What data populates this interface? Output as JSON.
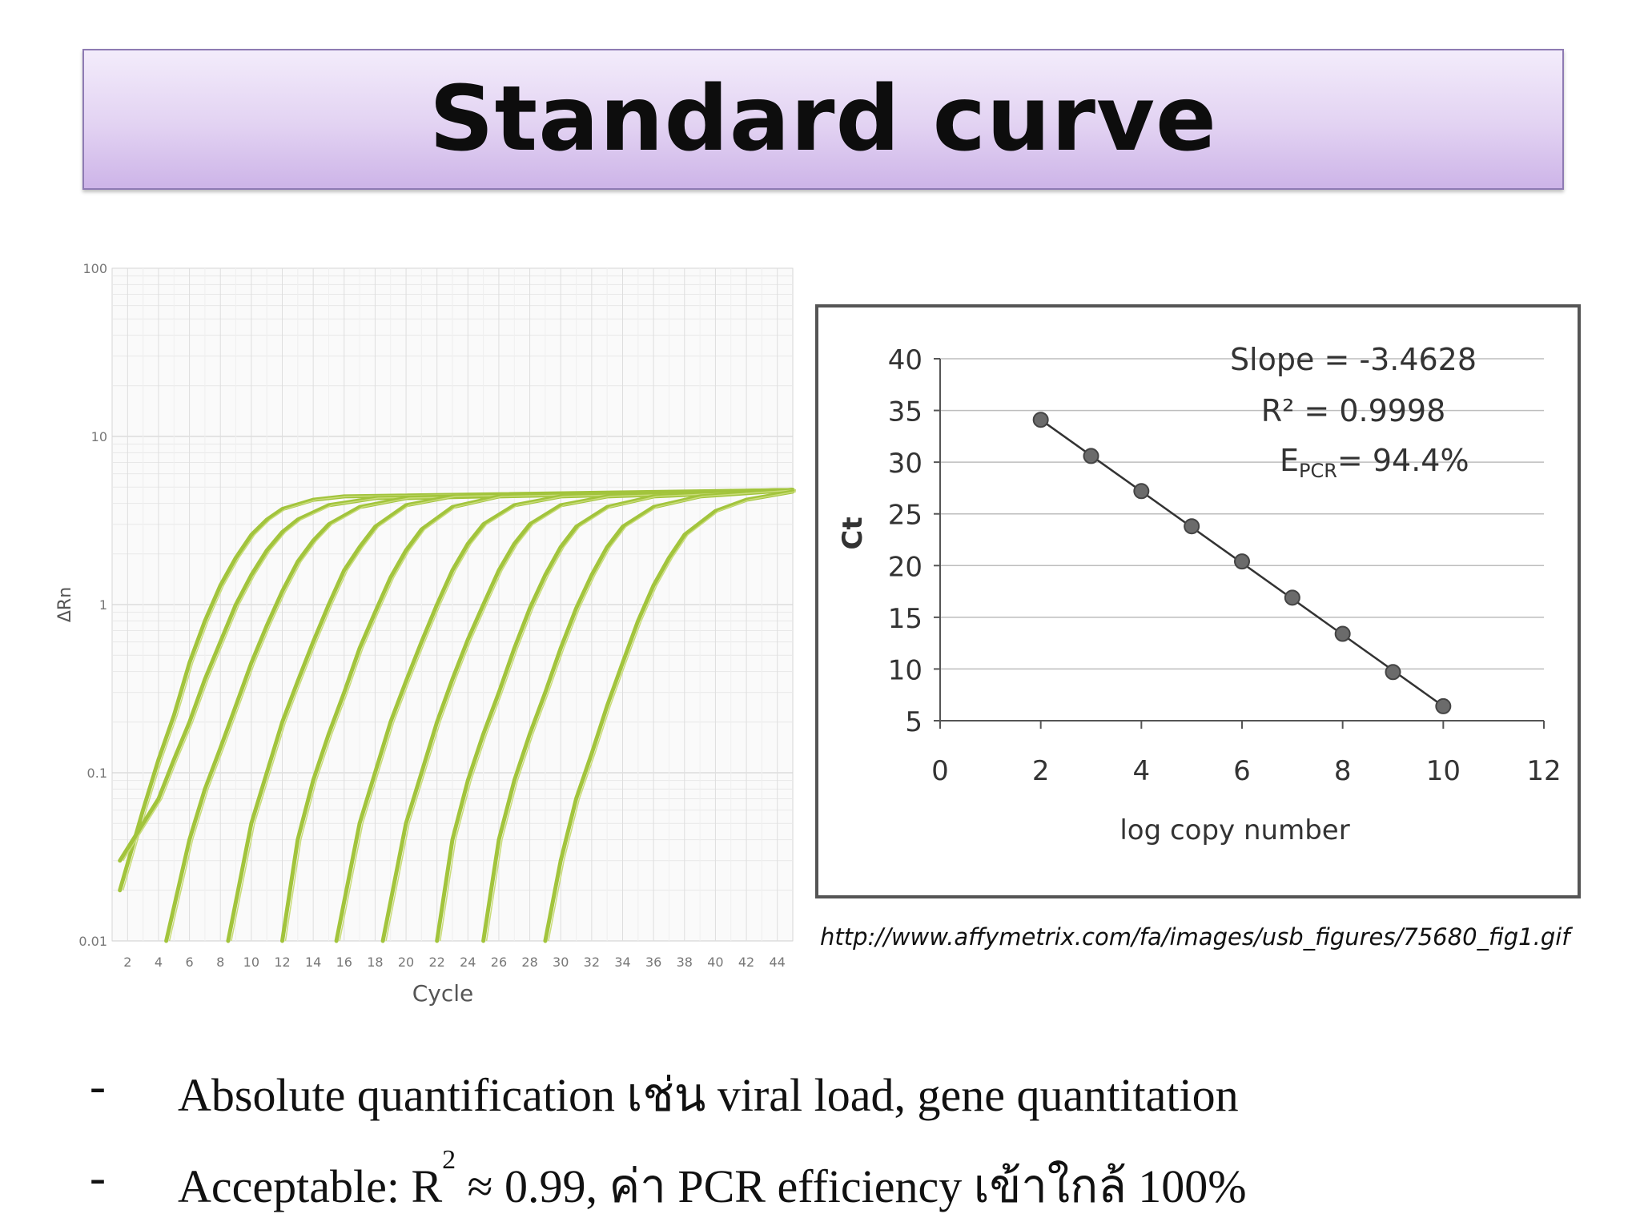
{
  "slide": {
    "title": "Standard curve",
    "source": "http://www.affymetrix.com/fa/images/usb_figures/75680_fig1.gif",
    "bullets": [
      {
        "marker": "-",
        "text": "Absolute quantification เช่น viral load, gene quantitation"
      },
      {
        "marker": "-",
        "pre": "Acceptable: R",
        "sup": "2",
        "post": " ≈ 0.99, ค่า PCR efficiency เข้าใกล้ 100%"
      }
    ]
  },
  "chart_data": [
    {
      "type": "line",
      "xlabel": "Cycle",
      "ylabel": "ΔRn",
      "xlim": [
        1,
        45
      ],
      "ylim": [
        0.01,
        100
      ],
      "yscale": "log",
      "x_ticks": [
        2,
        4,
        6,
        8,
        10,
        12,
        14,
        16,
        18,
        20,
        22,
        24,
        26,
        28,
        30,
        32,
        34,
        36,
        38,
        40,
        42,
        44
      ],
      "y_ticks": [
        "0.01",
        "0.1",
        "1",
        "10",
        "100"
      ],
      "grid": true,
      "color": "#a2c43c",
      "series": [
        {
          "values_at": {
            "x": [
              1.5,
              3,
              4,
              5,
              6,
              7,
              8,
              9,
              10,
              11,
              12,
              14,
              16,
              45
            ],
            "y": [
              0.02,
              0.06,
              0.12,
              0.22,
              0.45,
              0.8,
              1.3,
              1.9,
              2.6,
              3.2,
              3.7,
              4.2,
              4.4,
              4.8
            ]
          }
        },
        {
          "values_at": {
            "x": [
              1.5,
              4,
              5,
              6,
              7,
              8,
              9,
              10,
              11,
              12,
              13,
              15,
              18,
              45
            ],
            "y": [
              0.03,
              0.07,
              0.12,
              0.2,
              0.36,
              0.6,
              1.0,
              1.5,
              2.1,
              2.7,
              3.2,
              3.9,
              4.3,
              4.8
            ]
          }
        },
        {
          "values_at": {
            "x": [
              4.5,
              6,
              7,
              8,
              9,
              10,
              11,
              12,
              13,
              14,
              15,
              17,
              20,
              45
            ],
            "y": [
              0.01,
              0.04,
              0.08,
              0.14,
              0.25,
              0.45,
              0.75,
              1.2,
              1.8,
              2.4,
              3.0,
              3.8,
              4.3,
              4.8
            ]
          }
        },
        {
          "values_at": {
            "x": [
              8.5,
              10,
              11,
              12,
              13,
              14,
              15,
              16,
              17,
              18,
              20,
              23,
              45
            ],
            "y": [
              0.01,
              0.05,
              0.1,
              0.2,
              0.35,
              0.6,
              1.0,
              1.6,
              2.2,
              2.9,
              3.9,
              4.4,
              4.8
            ]
          }
        },
        {
          "values_at": {
            "x": [
              12,
              13,
              14,
              15,
              16,
              17,
              18,
              19,
              20,
              21,
              23,
              26,
              45
            ],
            "y": [
              0.01,
              0.04,
              0.09,
              0.17,
              0.3,
              0.55,
              0.9,
              1.45,
              2.1,
              2.8,
              3.8,
              4.4,
              4.8
            ]
          }
        },
        {
          "values_at": {
            "x": [
              15.5,
              17,
              18,
              19,
              20,
              21,
              22,
              23,
              24,
              25,
              27,
              30,
              45
            ],
            "y": [
              0.01,
              0.05,
              0.1,
              0.2,
              0.35,
              0.6,
              1.0,
              1.6,
              2.3,
              3.0,
              3.9,
              4.4,
              4.8
            ]
          }
        },
        {
          "values_at": {
            "x": [
              18.5,
              20,
              21,
              22,
              23,
              24,
              25,
              26,
              27,
              28,
              30,
              33,
              45
            ],
            "y": [
              0.01,
              0.05,
              0.1,
              0.2,
              0.36,
              0.62,
              1.0,
              1.6,
              2.3,
              3.0,
              3.9,
              4.4,
              4.8
            ]
          }
        },
        {
          "values_at": {
            "x": [
              22,
              23,
              24,
              25,
              26,
              27,
              28,
              29,
              30,
              31,
              33,
              36,
              45
            ],
            "y": [
              0.01,
              0.04,
              0.09,
              0.17,
              0.3,
              0.55,
              0.95,
              1.5,
              2.2,
              2.9,
              3.8,
              4.4,
              4.8
            ]
          }
        },
        {
          "values_at": {
            "x": [
              25,
              26,
              27,
              28,
              29,
              30,
              31,
              32,
              33,
              34,
              36,
              39,
              45
            ],
            "y": [
              0.01,
              0.04,
              0.09,
              0.17,
              0.3,
              0.55,
              0.95,
              1.5,
              2.2,
              2.9,
              3.8,
              4.4,
              4.8
            ]
          }
        },
        {
          "values_at": {
            "x": [
              29,
              30,
              31,
              32,
              33,
              34,
              35,
              36,
              37,
              38,
              40,
              42,
              45
            ],
            "y": [
              0.01,
              0.03,
              0.07,
              0.13,
              0.25,
              0.45,
              0.8,
              1.3,
              1.9,
              2.6,
              3.6,
              4.2,
              4.7
            ]
          }
        }
      ]
    },
    {
      "type": "scatter",
      "xlabel": "log copy number",
      "ylabel": "Ct",
      "xlim": [
        0,
        12
      ],
      "ylim": [
        5,
        40
      ],
      "x_ticks": [
        0,
        2,
        4,
        6,
        8,
        10,
        12
      ],
      "y_ticks": [
        5,
        10,
        15,
        20,
        25,
        30,
        35,
        40
      ],
      "grid": true,
      "annotations": [
        "Slope = -3.4628",
        "R² = 0.9998",
        "E",
        "PCR",
        "= 94.4%"
      ],
      "points": {
        "x": [
          2,
          3,
          4,
          5,
          6,
          7,
          8,
          9,
          10
        ],
        "y": [
          34.1,
          30.6,
          27.2,
          23.8,
          20.4,
          16.9,
          13.4,
          9.7,
          6.4
        ]
      },
      "fit_line": {
        "x": [
          2,
          10
        ],
        "y": [
          34.1,
          6.4
        ]
      }
    }
  ]
}
